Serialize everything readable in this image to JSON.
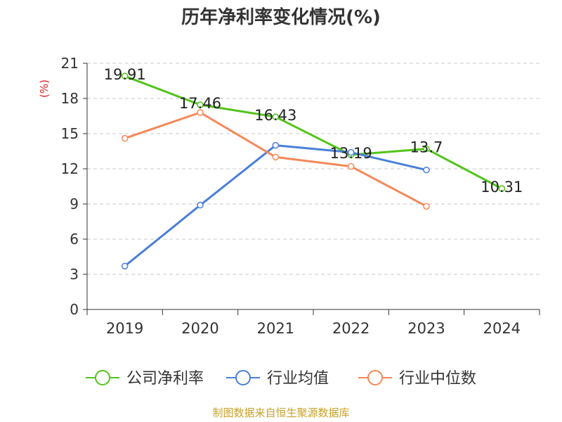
{
  "title": "历年净利率变化情况(%)",
  "footer": "制图数据来自恒生聚源数据库",
  "colors": {
    "company": "#52c41a",
    "industry_avg": "#4a7fd9",
    "industry_median": "#f5885a",
    "unit": "#e02020",
    "footer": "#c9a227"
  },
  "chart_data": {
    "type": "line",
    "title": "历年净利率变化情况(%)",
    "ylabel": "(%)",
    "xlabel": "",
    "categories": [
      "2019",
      "2020",
      "2021",
      "2022",
      "2023",
      "2024"
    ],
    "ylim": [
      0,
      21
    ],
    "yticks": [
      0,
      3,
      6,
      9,
      12,
      15,
      18,
      21
    ],
    "grid": true,
    "legend_position": "bottom",
    "series": [
      {
        "name": "公司净利率",
        "values": [
          19.91,
          17.46,
          16.43,
          13.19,
          13.7,
          10.31
        ],
        "labels": [
          "19.91",
          "17.46",
          "16.43",
          "13.19",
          "13.7",
          "10.31"
        ]
      },
      {
        "name": "行业均值",
        "values": [
          3.7,
          8.9,
          14.0,
          13.4,
          11.9,
          null
        ]
      },
      {
        "name": "行业中位数",
        "values": [
          14.6,
          16.8,
          13.0,
          12.2,
          8.8,
          null
        ]
      }
    ]
  }
}
